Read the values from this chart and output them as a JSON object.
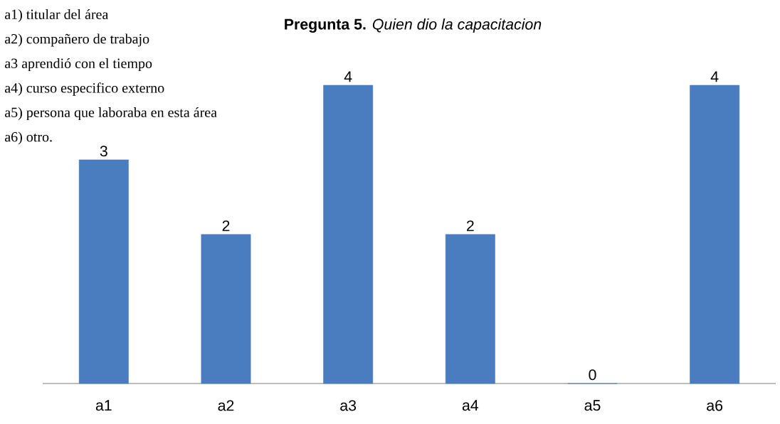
{
  "chart_data": {
    "type": "bar",
    "title": "**Pregunta 5.** *Quien dio la capacitacion*",
    "categories": [
      "a1",
      "a2",
      "a3",
      "a4",
      "a5",
      "a6"
    ],
    "values": [
      3,
      2,
      4,
      2,
      0,
      4
    ],
    "color": "#4a7cc0",
    "data_labels": true,
    "annotations": [
      "a1) titular del área",
      "a2) compañero de trabajo",
      "a3 aprendió con el tiempo",
      "a4) curso especifico externo",
      "a5) persona que laboraba en esta área",
      "a6) otro."
    ]
  }
}
